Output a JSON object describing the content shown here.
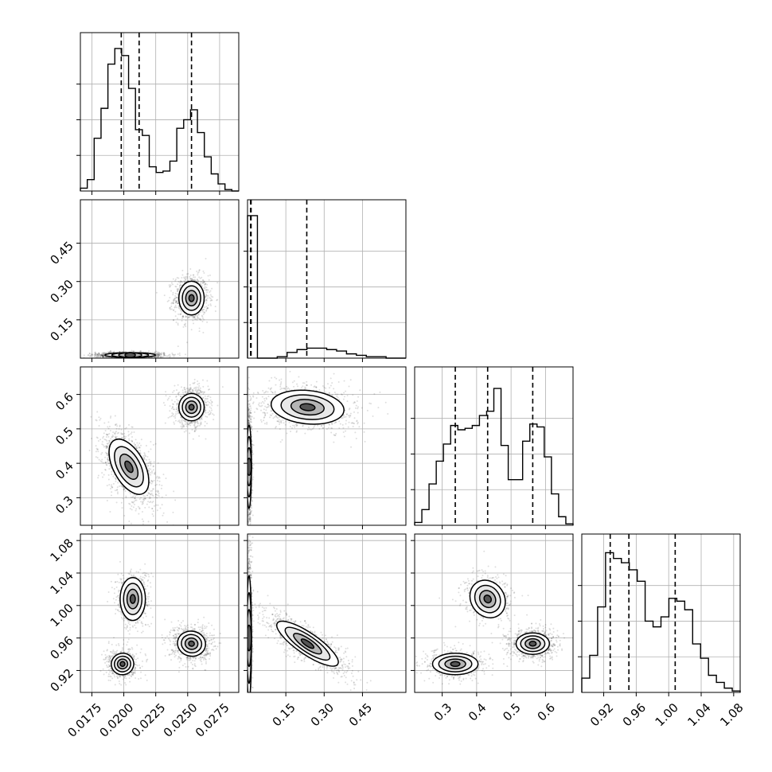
{
  "chart_data": {
    "type": "corner",
    "grid": true,
    "parameters": [
      {
        "range": [
          0.0166,
          0.029
        ],
        "ticks": [
          0.0175,
          0.02,
          0.0225,
          0.025,
          0.0275
        ],
        "tick_labels": [
          "0.0175",
          "0.0200",
          "0.0225",
          "0.0250",
          "0.0275"
        ],
        "quantiles": [
          0.0198,
          0.0212,
          0.0253
        ],
        "hist": [
          0.02,
          0.08,
          0.37,
          0.58,
          0.89,
          1.0,
          0.95,
          0.72,
          0.43,
          0.39,
          0.17,
          0.13,
          0.14,
          0.21,
          0.44,
          0.5,
          0.57,
          0.41,
          0.24,
          0.12,
          0.05,
          0.01,
          0.0
        ]
      },
      {
        "range": [
          0.0,
          0.62
        ],
        "ticks": [
          0.15,
          0.3,
          0.45
        ],
        "tick_labels": [
          "0.15",
          "0.30",
          "0.45"
        ],
        "quantiles": [
          0.012,
          0.014,
          0.232
        ],
        "hist": [
          1.0,
          0.0,
          0.0,
          0.01,
          0.04,
          0.06,
          0.07,
          0.07,
          0.06,
          0.05,
          0.03,
          0.02,
          0.01,
          0.01,
          0.0,
          0.0
        ]
      },
      {
        "range": [
          0.22,
          0.68
        ],
        "ticks": [
          0.3,
          0.4,
          0.5,
          0.6
        ],
        "tick_labels": [
          "0.3",
          "0.4",
          "0.5",
          "0.6"
        ],
        "quantiles": [
          0.338,
          0.432,
          0.563
        ],
        "hist": [
          0.02,
          0.11,
          0.29,
          0.45,
          0.57,
          0.7,
          0.67,
          0.68,
          0.7,
          0.77,
          0.8,
          0.96,
          0.56,
          0.32,
          0.32,
          0.59,
          0.71,
          0.69,
          0.48,
          0.22,
          0.06,
          0.01
        ]
      },
      {
        "range": [
          0.893,
          1.088
        ],
        "ticks": [
          0.92,
          0.96,
          1.0,
          1.04,
          1.08
        ],
        "tick_labels": [
          "0.92",
          "0.96",
          "1.00",
          "1.04",
          "1.08"
        ],
        "quantiles": [
          0.928,
          0.951,
          1.008
        ],
        "hist": [
          0.1,
          0.26,
          0.6,
          0.98,
          0.94,
          0.91,
          0.86,
          0.78,
          0.5,
          0.46,
          0.53,
          0.66,
          0.64,
          0.58,
          0.34,
          0.24,
          0.12,
          0.07,
          0.03,
          0.01
        ]
      }
    ],
    "pairs": [
      {
        "x": 0,
        "y": 1,
        "clusters": [
          {
            "center": [
              0.0253,
              0.235
            ],
            "spread": [
              0.00045,
              0.03
            ],
            "rot": 0,
            "weight": 0.45
          },
          {
            "center": [
              0.0205,
              0.012
            ],
            "spread": [
              0.0009,
              0.004
            ],
            "rot": 0,
            "weight": 0.55
          }
        ]
      },
      {
        "x": 0,
        "y": 2,
        "clusters": [
          {
            "center": [
              0.0253,
              0.563
            ],
            "spread": [
              0.00045,
              0.018
            ],
            "rot": 0,
            "weight": 0.45
          },
          {
            "center": [
              0.0204,
              0.39
            ],
            "spread": [
              0.00055,
              0.04
            ],
            "rot": 0.5,
            "weight": 0.55
          }
        ]
      },
      {
        "x": 0,
        "y": 3,
        "clusters": [
          {
            "center": [
              0.0253,
              0.953
            ],
            "spread": [
              0.0005,
              0.007
            ],
            "rot": -0.2,
            "weight": 0.45
          },
          {
            "center": [
              0.0207,
              1.008
            ],
            "spread": [
              0.00045,
              0.012
            ],
            "rot": 0,
            "weight": 0.25
          },
          {
            "center": [
              0.0199,
              0.928
            ],
            "spread": [
              0.0004,
              0.006
            ],
            "rot": 0.2,
            "weight": 0.3
          }
        ]
      },
      {
        "x": 1,
        "y": 2,
        "clusters": [
          {
            "center": [
              0.235,
              0.563
            ],
            "spread": [
              0.065,
              0.022
            ],
            "rot": -0.1,
            "weight": 0.45
          },
          {
            "center": [
              0.006,
              0.39
            ],
            "spread": [
              0.004,
              0.055
            ],
            "rot": 0,
            "weight": 0.55
          }
        ]
      },
      {
        "x": 1,
        "y": 3,
        "clusters": [
          {
            "center": [
              0.235,
              0.953
            ],
            "spread": [
              0.065,
              0.006
            ],
            "rot": -0.6,
            "weight": 0.45
          },
          {
            "center": [
              0.006,
              0.96
            ],
            "spread": [
              0.004,
              0.035
            ],
            "rot": 0,
            "weight": 0.55
          }
        ]
      },
      {
        "x": 2,
        "y": 3,
        "clusters": [
          {
            "center": [
              0.563,
              0.953
            ],
            "spread": [
              0.022,
              0.006
            ],
            "rot": 0,
            "weight": 0.45
          },
          {
            "center": [
              0.432,
              1.008
            ],
            "spread": [
              0.022,
              0.011
            ],
            "rot": 0.6,
            "weight": 0.25
          },
          {
            "center": [
              0.338,
              0.928
            ],
            "spread": [
              0.03,
              0.006
            ],
            "rot": 0,
            "weight": 0.3
          }
        ]
      }
    ]
  }
}
